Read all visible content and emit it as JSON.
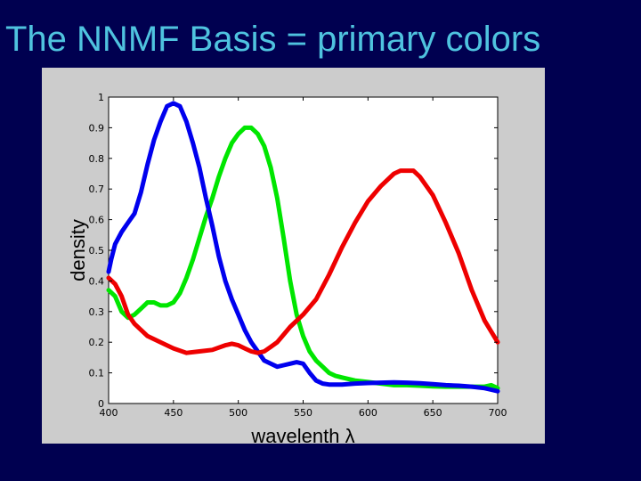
{
  "slide": {
    "title": "The NNMF Basis = primary colors"
  },
  "chart_data": {
    "type": "line",
    "title": "",
    "xlabel": "wavelenth λ",
    "ylabel": "density",
    "xlim": [
      400,
      700
    ],
    "ylim": [
      0,
      1
    ],
    "xticks": [
      400,
      450,
      500,
      550,
      600,
      650,
      700
    ],
    "yticks": [
      0,
      0.1,
      0.2,
      0.3,
      0.4,
      0.5,
      0.6,
      0.7,
      0.8,
      0.9,
      1
    ],
    "ytick_labels": [
      "0",
      "0.1",
      "0.2",
      "0.3",
      "0.4",
      "0.5",
      "0.6",
      "0.7",
      "0.8",
      "0.9",
      "1"
    ],
    "grid": false,
    "legend": false,
    "series": [
      {
        "color": "#00e600",
        "x": [
          400,
          405,
          410,
          415,
          420,
          425,
          430,
          435,
          440,
          445,
          450,
          455,
          460,
          465,
          470,
          475,
          480,
          485,
          490,
          495,
          500,
          505,
          510,
          515,
          520,
          525,
          530,
          535,
          540,
          545,
          550,
          555,
          560,
          565,
          570,
          575,
          580,
          590,
          600,
          610,
          620,
          630,
          640,
          650,
          660,
          670,
          680,
          690,
          695,
          700
        ],
        "values": [
          0.37,
          0.35,
          0.3,
          0.28,
          0.29,
          0.31,
          0.33,
          0.33,
          0.32,
          0.32,
          0.33,
          0.36,
          0.41,
          0.47,
          0.54,
          0.61,
          0.67,
          0.74,
          0.8,
          0.85,
          0.88,
          0.9,
          0.9,
          0.88,
          0.84,
          0.77,
          0.67,
          0.54,
          0.4,
          0.29,
          0.22,
          0.17,
          0.14,
          0.12,
          0.1,
          0.09,
          0.085,
          0.075,
          0.07,
          0.065,
          0.06,
          0.06,
          0.058,
          0.056,
          0.055,
          0.055,
          0.055,
          0.055,
          0.06,
          0.05
        ]
      },
      {
        "color": "#0000ee",
        "x": [
          400,
          402,
          405,
          410,
          415,
          420,
          425,
          430,
          435,
          440,
          445,
          450,
          455,
          460,
          465,
          470,
          475,
          480,
          485,
          490,
          495,
          500,
          505,
          510,
          515,
          520,
          525,
          530,
          535,
          540,
          545,
          550,
          555,
          560,
          565,
          570,
          580,
          590,
          600,
          610,
          620,
          630,
          640,
          650,
          660,
          670,
          680,
          690,
          695,
          700
        ],
        "values": [
          0.43,
          0.47,
          0.52,
          0.56,
          0.59,
          0.62,
          0.69,
          0.78,
          0.86,
          0.92,
          0.97,
          0.98,
          0.97,
          0.92,
          0.85,
          0.77,
          0.67,
          0.58,
          0.48,
          0.4,
          0.34,
          0.29,
          0.24,
          0.2,
          0.17,
          0.14,
          0.13,
          0.12,
          0.125,
          0.13,
          0.135,
          0.13,
          0.1,
          0.075,
          0.065,
          0.062,
          0.062,
          0.065,
          0.067,
          0.068,
          0.069,
          0.068,
          0.066,
          0.063,
          0.06,
          0.058,
          0.055,
          0.05,
          0.045,
          0.04
        ]
      },
      {
        "color": "#ee0000",
        "x": [
          400,
          405,
          410,
          415,
          420,
          425,
          430,
          440,
          450,
          460,
          470,
          480,
          490,
          495,
          500,
          505,
          510,
          515,
          520,
          525,
          530,
          540,
          550,
          560,
          570,
          580,
          590,
          600,
          610,
          620,
          625,
          630,
          635,
          640,
          650,
          660,
          670,
          680,
          690,
          700
        ],
        "values": [
          0.41,
          0.39,
          0.35,
          0.29,
          0.26,
          0.24,
          0.22,
          0.2,
          0.18,
          0.165,
          0.17,
          0.175,
          0.19,
          0.195,
          0.19,
          0.18,
          0.17,
          0.165,
          0.17,
          0.185,
          0.2,
          0.25,
          0.29,
          0.34,
          0.42,
          0.51,
          0.59,
          0.66,
          0.71,
          0.75,
          0.76,
          0.76,
          0.76,
          0.74,
          0.68,
          0.59,
          0.49,
          0.37,
          0.27,
          0.2
        ]
      }
    ]
  }
}
